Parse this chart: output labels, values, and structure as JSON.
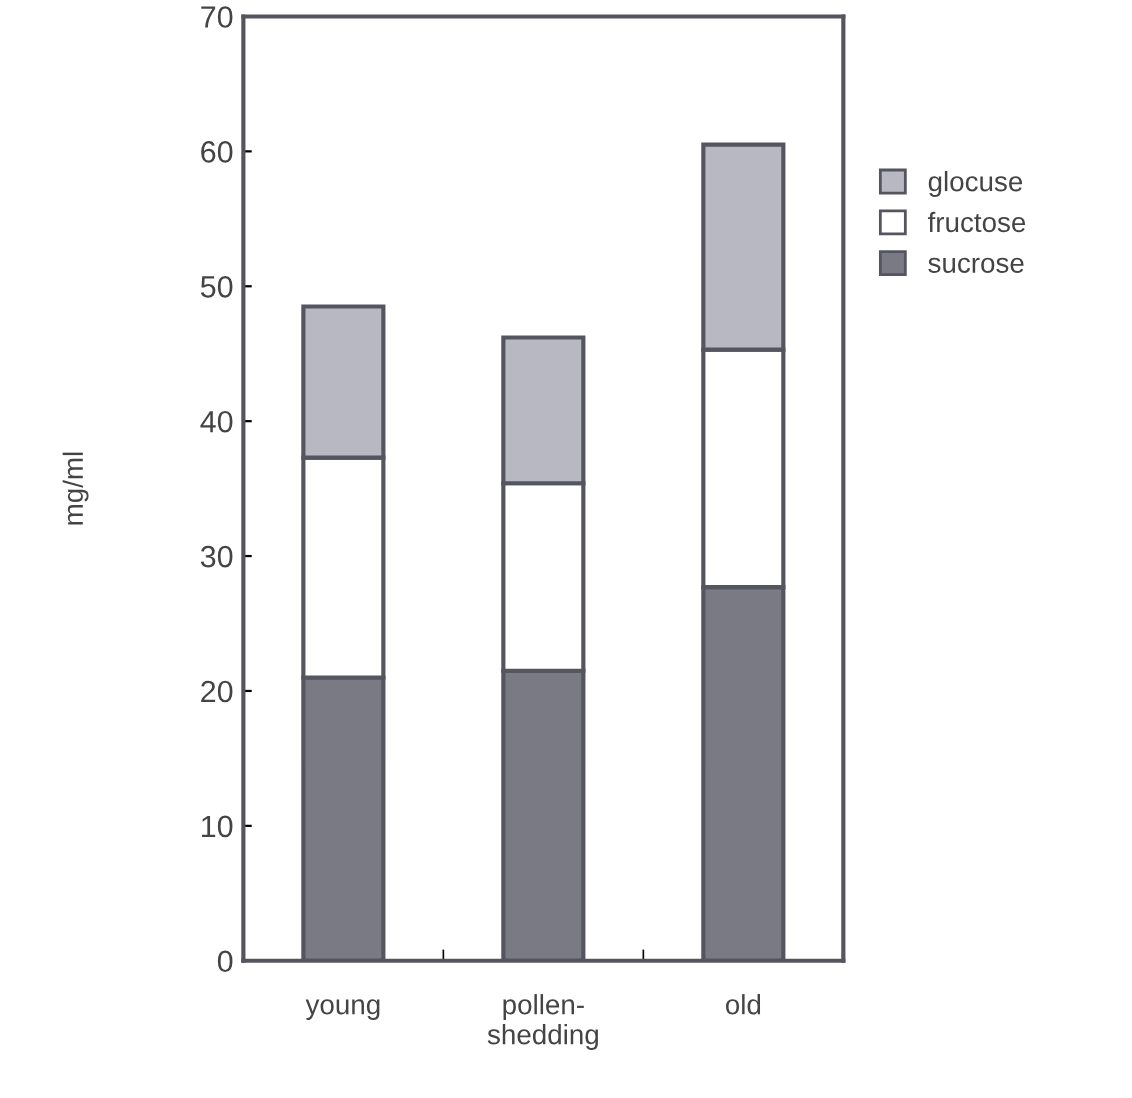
{
  "chart_data": {
    "type": "bar",
    "stacked": true,
    "ylabel": "mg/ml",
    "categories": [
      "young",
      "pollen-\nshedding",
      "old"
    ],
    "series": [
      {
        "name": "sucrose",
        "color": "#7a7a84",
        "values": [
          21,
          21.5,
          27.7
        ]
      },
      {
        "name": "fructose",
        "color": "#ffffff",
        "values": [
          16.3,
          13.9,
          17.6
        ]
      },
      {
        "name": "glocuse",
        "color": "#b8b8c2",
        "values": [
          11.2,
          10.8,
          15.2
        ]
      }
    ],
    "ylim": [
      0,
      70
    ],
    "yticks": [
      0,
      10,
      20,
      30,
      40,
      50,
      60,
      70
    ],
    "grid": false,
    "legend": "right"
  }
}
